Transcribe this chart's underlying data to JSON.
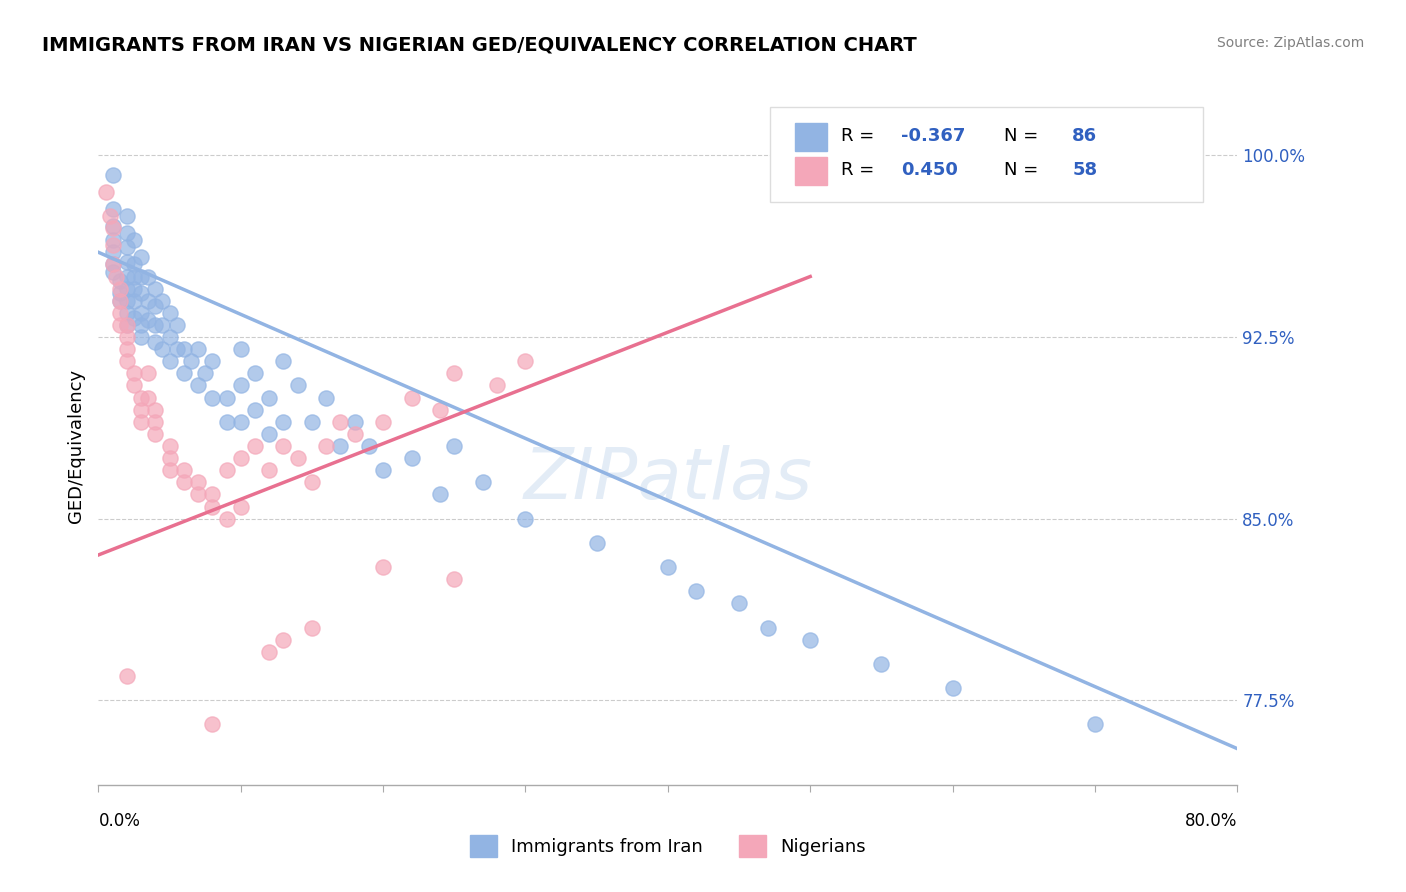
{
  "title": "IMMIGRANTS FROM IRAN VS NIGERIAN GED/EQUIVALENCY CORRELATION CHART",
  "source": "Source: ZipAtlas.com",
  "ylabel": "GED/Equivalency",
  "yticks": [
    77.5,
    80.0,
    82.5,
    85.0,
    87.5,
    90.0,
    92.5,
    95.0,
    97.5,
    100.0
  ],
  "ytick_labels": [
    "77.5%",
    "",
    "",
    "85.0%",
    "",
    "",
    "92.5%",
    "",
    "",
    "100.0%"
  ],
  "xmin": 0.0,
  "xmax": 0.8,
  "ymin": 74.0,
  "ymax": 102.0,
  "series1_label": "Immigrants from Iran",
  "series1_color": "#92b4e3",
  "series1_R": "-0.367",
  "series1_N": "86",
  "series2_label": "Nigerians",
  "series2_color": "#f4a7b9",
  "series2_R": "0.450",
  "series2_N": "58",
  "legend_R_color": "#3060c0",
  "watermark": "ZIPatlas",
  "blue_scatter": [
    [
      0.01,
      99.2
    ],
    [
      0.01,
      97.8
    ],
    [
      0.01,
      97.1
    ],
    [
      0.01,
      96.5
    ],
    [
      0.01,
      96.0
    ],
    [
      0.01,
      95.5
    ],
    [
      0.01,
      95.2
    ],
    [
      0.015,
      94.8
    ],
    [
      0.015,
      94.3
    ],
    [
      0.015,
      94.0
    ],
    [
      0.02,
      97.5
    ],
    [
      0.02,
      96.8
    ],
    [
      0.02,
      96.2
    ],
    [
      0.02,
      95.6
    ],
    [
      0.02,
      95.0
    ],
    [
      0.02,
      94.5
    ],
    [
      0.02,
      94.0
    ],
    [
      0.02,
      93.5
    ],
    [
      0.02,
      93.0
    ],
    [
      0.025,
      96.5
    ],
    [
      0.025,
      95.5
    ],
    [
      0.025,
      95.0
    ],
    [
      0.025,
      94.5
    ],
    [
      0.025,
      94.0
    ],
    [
      0.025,
      93.3
    ],
    [
      0.03,
      95.8
    ],
    [
      0.03,
      95.0
    ],
    [
      0.03,
      94.3
    ],
    [
      0.03,
      93.5
    ],
    [
      0.03,
      93.0
    ],
    [
      0.03,
      92.5
    ],
    [
      0.035,
      95.0
    ],
    [
      0.035,
      94.0
    ],
    [
      0.035,
      93.2
    ],
    [
      0.04,
      94.5
    ],
    [
      0.04,
      93.8
    ],
    [
      0.04,
      93.0
    ],
    [
      0.04,
      92.3
    ],
    [
      0.045,
      94.0
    ],
    [
      0.045,
      93.0
    ],
    [
      0.045,
      92.0
    ],
    [
      0.05,
      93.5
    ],
    [
      0.05,
      92.5
    ],
    [
      0.05,
      91.5
    ],
    [
      0.055,
      93.0
    ],
    [
      0.055,
      92.0
    ],
    [
      0.06,
      92.0
    ],
    [
      0.06,
      91.0
    ],
    [
      0.065,
      91.5
    ],
    [
      0.07,
      92.0
    ],
    [
      0.07,
      90.5
    ],
    [
      0.075,
      91.0
    ],
    [
      0.08,
      91.5
    ],
    [
      0.08,
      90.0
    ],
    [
      0.09,
      90.0
    ],
    [
      0.09,
      89.0
    ],
    [
      0.1,
      92.0
    ],
    [
      0.1,
      90.5
    ],
    [
      0.1,
      89.0
    ],
    [
      0.11,
      91.0
    ],
    [
      0.11,
      89.5
    ],
    [
      0.12,
      90.0
    ],
    [
      0.12,
      88.5
    ],
    [
      0.13,
      91.5
    ],
    [
      0.13,
      89.0
    ],
    [
      0.14,
      90.5
    ],
    [
      0.15,
      89.0
    ],
    [
      0.16,
      90.0
    ],
    [
      0.17,
      88.0
    ],
    [
      0.18,
      89.0
    ],
    [
      0.19,
      88.0
    ],
    [
      0.2,
      87.0
    ],
    [
      0.22,
      87.5
    ],
    [
      0.24,
      86.0
    ],
    [
      0.25,
      88.0
    ],
    [
      0.27,
      86.5
    ],
    [
      0.3,
      85.0
    ],
    [
      0.35,
      84.0
    ],
    [
      0.4,
      83.0
    ],
    [
      0.42,
      82.0
    ],
    [
      0.45,
      81.5
    ],
    [
      0.47,
      80.5
    ],
    [
      0.5,
      80.0
    ],
    [
      0.55,
      79.0
    ],
    [
      0.6,
      78.0
    ],
    [
      0.7,
      76.5
    ]
  ],
  "pink_scatter": [
    [
      0.005,
      98.5
    ],
    [
      0.008,
      97.5
    ],
    [
      0.01,
      97.0
    ],
    [
      0.01,
      96.3
    ],
    [
      0.01,
      95.5
    ],
    [
      0.012,
      95.0
    ],
    [
      0.015,
      94.5
    ],
    [
      0.015,
      94.0
    ],
    [
      0.015,
      93.5
    ],
    [
      0.015,
      93.0
    ],
    [
      0.02,
      93.0
    ],
    [
      0.02,
      92.5
    ],
    [
      0.02,
      92.0
    ],
    [
      0.02,
      91.5
    ],
    [
      0.025,
      91.0
    ],
    [
      0.025,
      90.5
    ],
    [
      0.03,
      90.0
    ],
    [
      0.03,
      89.5
    ],
    [
      0.03,
      89.0
    ],
    [
      0.035,
      91.0
    ],
    [
      0.035,
      90.0
    ],
    [
      0.04,
      89.5
    ],
    [
      0.04,
      89.0
    ],
    [
      0.04,
      88.5
    ],
    [
      0.05,
      88.0
    ],
    [
      0.05,
      87.5
    ],
    [
      0.05,
      87.0
    ],
    [
      0.06,
      87.0
    ],
    [
      0.06,
      86.5
    ],
    [
      0.07,
      86.5
    ],
    [
      0.07,
      86.0
    ],
    [
      0.08,
      86.0
    ],
    [
      0.08,
      85.5
    ],
    [
      0.09,
      87.0
    ],
    [
      0.09,
      85.0
    ],
    [
      0.1,
      87.5
    ],
    [
      0.1,
      85.5
    ],
    [
      0.11,
      88.0
    ],
    [
      0.12,
      87.0
    ],
    [
      0.13,
      88.0
    ],
    [
      0.14,
      87.5
    ],
    [
      0.15,
      86.5
    ],
    [
      0.16,
      88.0
    ],
    [
      0.17,
      89.0
    ],
    [
      0.18,
      88.5
    ],
    [
      0.2,
      89.0
    ],
    [
      0.22,
      90.0
    ],
    [
      0.24,
      89.5
    ],
    [
      0.25,
      91.0
    ],
    [
      0.28,
      90.5
    ],
    [
      0.3,
      91.5
    ],
    [
      0.02,
      78.5
    ],
    [
      0.08,
      76.5
    ],
    [
      0.12,
      79.5
    ],
    [
      0.13,
      80.0
    ],
    [
      0.15,
      80.5
    ],
    [
      0.2,
      83.0
    ],
    [
      0.25,
      82.5
    ]
  ],
  "blue_line": [
    [
      0.0,
      96.0
    ],
    [
      0.8,
      75.5
    ]
  ],
  "pink_line": [
    [
      0.0,
      83.5
    ],
    [
      0.5,
      95.0
    ]
  ]
}
